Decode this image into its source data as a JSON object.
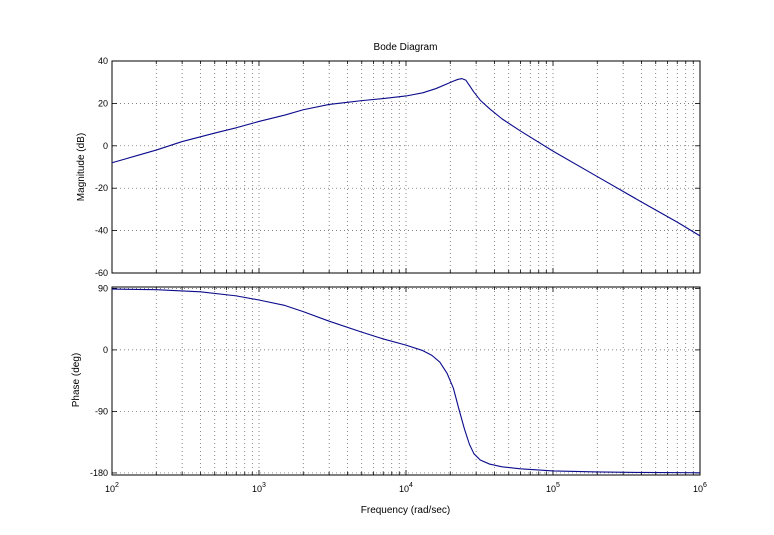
{
  "chart_data": [
    {
      "type": "line",
      "title": "Bode Diagram",
      "xlabel": "",
      "ylabel": "Magnitude (dB)",
      "xscale": "log",
      "xlim": [
        100,
        1000000
      ],
      "ylim": [
        -60,
        40
      ],
      "yticks": [
        "40",
        "20",
        "0",
        "-20",
        "-40",
        "-60"
      ],
      "grid": true,
      "line_color": "#0b0b8c",
      "series": [
        {
          "x": [
            100,
            150,
            200,
            300,
            500,
            700,
            1000,
            1500,
            2000,
            3000,
            4000,
            5000,
            7000,
            10000,
            13000,
            16000,
            19000,
            21000,
            22500,
            24000,
            25500,
            27000,
            29000,
            32000,
            37000,
            45000,
            60000,
            100000,
            200000,
            400000,
            700000,
            1000000
          ],
          "y": [
            -8,
            -4.5,
            -2,
            2,
            6,
            8.5,
            11.5,
            14.5,
            17,
            19.5,
            20.5,
            21.3,
            22.3,
            23.5,
            25,
            27,
            29.2,
            30.5,
            31.3,
            31.7,
            31,
            28.5,
            25.3,
            21.5,
            17.5,
            12.7,
            7,
            -2.5,
            -14.5,
            -26.5,
            -36,
            -42.5
          ]
        }
      ]
    },
    {
      "type": "line",
      "title": "",
      "xlabel": "Frequency  (rad/sec)",
      "ylabel": "Phase (deg)",
      "xscale": "log",
      "xlim": [
        100,
        1000000
      ],
      "ylim": [
        -183,
        92
      ],
      "yticks": [
        "90",
        "0",
        "-90",
        "-180"
      ],
      "xticks": [
        "10^2",
        "10^3",
        "10^4",
        "10^5",
        "10^6"
      ],
      "grid": true,
      "line_color": "#0b0b8c",
      "series": [
        {
          "x": [
            100,
            200,
            400,
            700,
            1000,
            1500,
            2000,
            3000,
            5000,
            7000,
            10000,
            13000,
            15000,
            17000,
            19000,
            21000,
            23000,
            25000,
            27000,
            29000,
            32000,
            37000,
            45000,
            60000,
            100000,
            200000,
            400000,
            1000000
          ],
          "y": [
            89,
            88,
            85,
            79,
            73,
            65,
            56,
            42,
            26,
            16,
            7,
            -1,
            -8,
            -18,
            -34,
            -56,
            -88,
            -116,
            -138,
            -152,
            -161,
            -167,
            -171,
            -174,
            -177,
            -178.5,
            -179.3,
            -179.7
          ]
        }
      ]
    }
  ]
}
